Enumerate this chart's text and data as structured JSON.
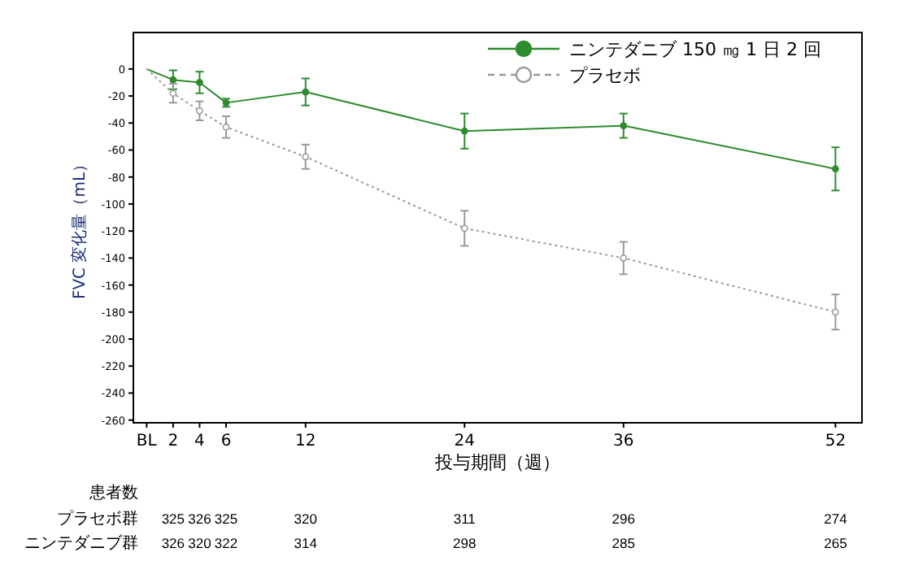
{
  "chart_data": {
    "type": "line",
    "ylabel": "FVC 変化量（mL）",
    "xlabel": "投与期間（週）",
    "x": [
      0,
      2,
      4,
      6,
      12,
      24,
      36,
      52
    ],
    "series": [
      {
        "name": "ニンテダニブ 150 ㎎ 1 日 2 回",
        "color": "#2e8b2e",
        "values": [
          0,
          -8,
          -10,
          -25,
          -17,
          -46,
          -42,
          -74
        ],
        "errors": [
          null,
          7,
          8,
          3,
          10,
          13,
          9,
          16
        ],
        "line_style": "solid"
      },
      {
        "name": "プラセボ",
        "color": "#9a9a9a",
        "values": [
          0,
          -18,
          -31,
          -43,
          -65,
          -118,
          -140,
          -180
        ],
        "errors": [
          null,
          7,
          7,
          8,
          9,
          13,
          12,
          13
        ],
        "line_style": "dotted"
      }
    ],
    "xlim": [
      -1,
      54
    ],
    "xticks": [
      {
        "value": 0,
        "label": "BL"
      },
      2,
      4,
      6,
      12,
      24,
      36,
      52
    ],
    "ylim": [
      -262,
      27
    ],
    "yticks": [
      0,
      -20,
      -40,
      -60,
      -80,
      -100,
      -120,
      -140,
      -160,
      -180,
      -200,
      -220,
      -240,
      -260
    ],
    "marker": "circle",
    "legend": "top right",
    "grid": false,
    "annotations": [
      "患者数",
      "プラセボ群",
      "325",
      "326",
      "325",
      "320",
      "311",
      "296",
      "274",
      "ニンテダニブ群",
      "326",
      "320",
      "322",
      "314",
      "298",
      "285",
      "265"
    ]
  }
}
